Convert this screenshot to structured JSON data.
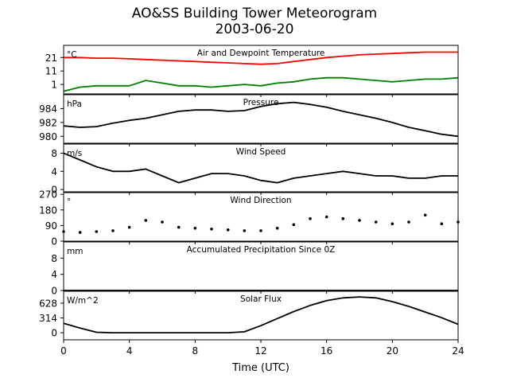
{
  "figure": {
    "title": "AO&SS Building Tower Meteorogram",
    "subtitle": "2003-06-20",
    "xlabel": "Time (UTC)"
  },
  "chart_data": [
    {
      "type": "line",
      "title": "Air and Dewpoint Temperature",
      "unit_label": "°C",
      "x": [
        0,
        1,
        2,
        3,
        4,
        5,
        6,
        7,
        8,
        9,
        10,
        11,
        12,
        13,
        14,
        15,
        16,
        17,
        18,
        19,
        20,
        21,
        22,
        23,
        24
      ],
      "series": [
        {
          "color": "#ff0000",
          "values": [
            21,
            21,
            20.5,
            20.5,
            20,
            19.5,
            19,
            18.5,
            18,
            17.5,
            17,
            16.5,
            16,
            16.5,
            18,
            19.5,
            21,
            22,
            23,
            23.5,
            24,
            24.5,
            25,
            25,
            25
          ]
        },
        {
          "color": "#008000",
          "values": [
            -4,
            -1,
            0,
            0,
            0,
            4,
            2,
            0,
            0,
            -1,
            0,
            1,
            0,
            2,
            3,
            5,
            6,
            6,
            5,
            4,
            3,
            4,
            5,
            5,
            6
          ]
        }
      ],
      "yticks": [
        1,
        11,
        21
      ],
      "ylim": [
        -6,
        30
      ],
      "xlim": [
        0,
        24
      ]
    },
    {
      "type": "line",
      "title": "Pressure",
      "unit_label": "hPa",
      "x": [
        0,
        1,
        2,
        3,
        4,
        5,
        6,
        7,
        8,
        9,
        10,
        11,
        12,
        13,
        14,
        15,
        16,
        17,
        18,
        19,
        20,
        21,
        22,
        23,
        24
      ],
      "series": [
        {
          "color": "#000000",
          "values": [
            981.5,
            981.3,
            981.4,
            981.9,
            982.3,
            982.6,
            983.1,
            983.6,
            983.8,
            983.8,
            983.6,
            983.7,
            984.3,
            984.7,
            984.9,
            984.6,
            984.2,
            983.6,
            983.1,
            982.6,
            982.0,
            981.3,
            980.8,
            980.3,
            980.0
          ]
        }
      ],
      "yticks": [
        980,
        982,
        984
      ],
      "ylim": [
        979.0,
        986.0
      ],
      "xlim": [
        0,
        24
      ]
    },
    {
      "type": "line",
      "title": "Wind Speed",
      "unit_label": "m/s",
      "x": [
        0,
        1,
        2,
        3,
        4,
        5,
        6,
        7,
        8,
        9,
        10,
        11,
        12,
        13,
        14,
        15,
        16,
        17,
        18,
        19,
        20,
        21,
        22,
        23,
        24
      ],
      "series": [
        {
          "color": "#000000",
          "values": [
            8,
            6.5,
            5,
            4,
            4,
            4.5,
            3,
            1.5,
            2.5,
            3.5,
            3.5,
            3,
            2,
            1.5,
            2.5,
            3,
            3.5,
            4,
            3.5,
            3,
            3,
            2.5,
            2.5,
            3,
            3
          ]
        }
      ],
      "yticks": [
        0,
        4,
        8
      ],
      "ylim": [
        -0.5,
        10
      ],
      "xlim": [
        0,
        24
      ]
    },
    {
      "type": "scatter",
      "title": "Wind Direction",
      "unit_label": "°",
      "x": [
        0,
        1,
        2,
        3,
        4,
        5,
        6,
        7,
        8,
        9,
        10,
        11,
        12,
        13,
        14,
        15,
        16,
        17,
        18,
        19,
        20,
        21,
        22,
        23,
        24
      ],
      "series": [
        {
          "color": "#000000",
          "values": [
            55,
            50,
            55,
            60,
            80,
            120,
            110,
            80,
            75,
            70,
            65,
            60,
            60,
            75,
            95,
            130,
            140,
            130,
            120,
            110,
            100,
            110,
            150,
            100,
            110
          ]
        }
      ],
      "yticks": [
        0,
        90,
        180,
        270
      ],
      "ylim": [
        0,
        280
      ],
      "xlim": [
        0,
        24
      ]
    },
    {
      "type": "line",
      "title": "Accumulated Precipitation Since 0Z",
      "unit_label": "mm",
      "x": [
        0,
        24
      ],
      "series": [
        {
          "color": "#000000",
          "values": [
            0,
            0
          ]
        }
      ],
      "yticks": [
        0,
        4,
        8
      ],
      "ylim": [
        0,
        12
      ],
      "xlim": [
        0,
        24
      ]
    },
    {
      "type": "line",
      "title": "Solar Flux",
      "unit_label": "W/m^2",
      "x": [
        0,
        1,
        2,
        3,
        4,
        5,
        6,
        7,
        8,
        9,
        10,
        11,
        12,
        13,
        14,
        15,
        16,
        17,
        18,
        19,
        20,
        21,
        22,
        23,
        24
      ],
      "series": [
        {
          "color": "#000000",
          "values": [
            200,
            100,
            10,
            0,
            0,
            0,
            0,
            0,
            0,
            0,
            0,
            20,
            150,
            300,
            450,
            580,
            680,
            740,
            760,
            740,
            660,
            560,
            440,
            320,
            180
          ]
        }
      ],
      "yticks": [
        0,
        314,
        628
      ],
      "ylim": [
        -150,
        880
      ],
      "xlim": [
        0,
        24
      ]
    }
  ],
  "xticks": [
    0,
    4,
    8,
    12,
    16,
    20,
    24
  ]
}
